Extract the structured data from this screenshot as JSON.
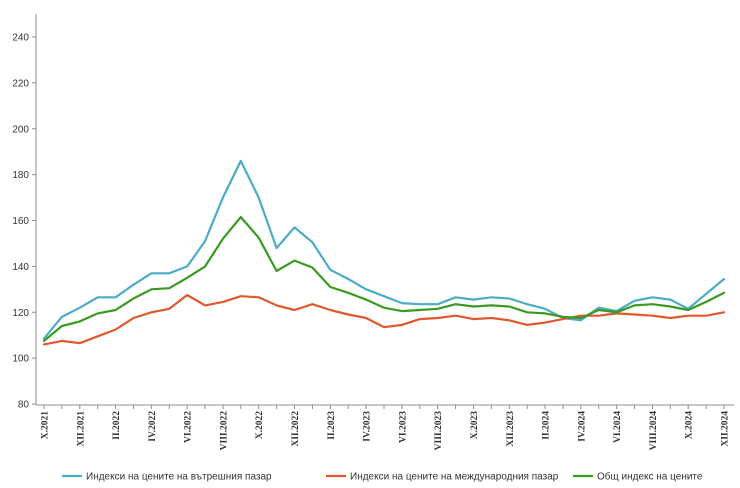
{
  "chart_data": {
    "type": "line",
    "title": "",
    "xlabel": "",
    "ylabel": "",
    "ylim": [
      80,
      240
    ],
    "yticks": [
      80,
      100,
      120,
      140,
      160,
      180,
      200,
      220,
      240
    ],
    "grid": false,
    "legend_position": "bottom",
    "x": [
      "X.2021",
      "XI.2021",
      "XII.2021",
      "I.2022",
      "II.2022",
      "III.2022",
      "IV.2022",
      "V.2022",
      "VI.2022",
      "VII.2022",
      "VIII.2022",
      "IX.2022",
      "X.2022",
      "XI.2022",
      "XII.2022",
      "I.2023",
      "II.2023",
      "III.2023",
      "IV.2023",
      "V.2023",
      "VI.2023",
      "VII.2023",
      "VIII.2023",
      "IX.2023",
      "X.2023",
      "XI.2023",
      "XII.2023",
      "I.2024",
      "II.2024",
      "III.2024",
      "IV.2024",
      "V.2024",
      "VI.2024",
      "VII.2024",
      "VIII.2024",
      "IX.2024",
      "X.2024",
      "XI.2024",
      "XII.2024"
    ],
    "x_tick_labels": [
      "X.2021",
      "XII.2021",
      "II.2022",
      "IV.2022",
      "VI.2022",
      "VIII.2022",
      "X.2022",
      "XII.2022",
      "II.2023",
      "IV.2023",
      "VI.2023",
      "VIII.2023",
      "X.2023",
      "XII.2023",
      "II.2024",
      "IV.2024",
      "VI.2024",
      "VIII.2024",
      "X.2024",
      "XII.2024"
    ],
    "series": [
      {
        "name": "Индекси на цените на вътрешния пазар",
        "color": "#4bacc6",
        "values": [
          108.5,
          118,
          122,
          126.5,
          126.5,
          132,
          137,
          137,
          140,
          151,
          170,
          186,
          170,
          148,
          157,
          150.5,
          138.5,
          134.5,
          130,
          127,
          124,
          123.5,
          123.5,
          126.5,
          125.5,
          126.5,
          126,
          123.5,
          121.5,
          117.5,
          116.5,
          122,
          120.5,
          125,
          126.5,
          125.5,
          121.5,
          128,
          134.5
        ]
      },
      {
        "name": "Индекси на цените на международния пазар",
        "color": "#e0582e",
        "values": [
          106,
          107.5,
          106.5,
          109.5,
          112.5,
          117.5,
          120,
          121.5,
          127.5,
          123,
          124.5,
          127,
          126.5,
          123,
          121,
          123.5,
          121,
          119,
          117.5,
          113.5,
          114.5,
          117,
          117.5,
          118.5,
          117,
          117.5,
          116.5,
          114.5,
          115.5,
          117,
          118.5,
          118.5,
          119.5,
          119,
          118.5,
          117.5,
          118.5,
          118.5,
          120
        ]
      },
      {
        "name": "Общ индекс на цените",
        "color": "#3a9a1f",
        "values": [
          107.5,
          114,
          116,
          119.5,
          121,
          126,
          130,
          130.5,
          135,
          140,
          152,
          161.5,
          152.5,
          138,
          142.5,
          139.5,
          131,
          128.5,
          125.5,
          122,
          120.5,
          121,
          121.5,
          123.5,
          122.5,
          123,
          122.5,
          120,
          119.5,
          118,
          117.5,
          121,
          120,
          123,
          123.5,
          122.5,
          121,
          124.5,
          128.5
        ]
      }
    ]
  }
}
